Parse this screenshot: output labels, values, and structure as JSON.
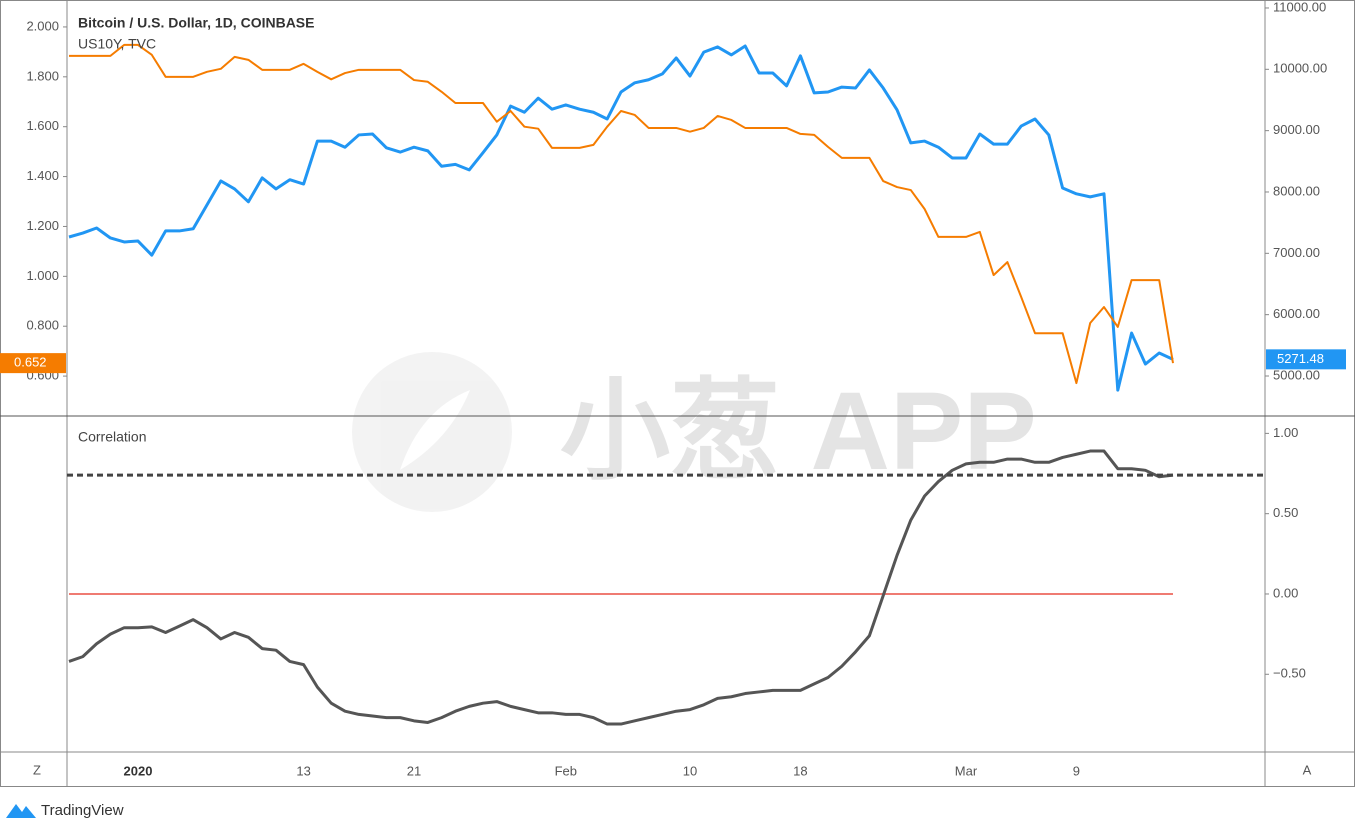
{
  "chart_data": [
    {
      "type": "line",
      "categories": [
        null,
        null,
        null,
        null,
        null,
        "2020",
        null,
        null,
        null,
        null,
        null,
        null,
        null,
        null,
        null,
        null,
        null,
        "13",
        null,
        null,
        null,
        null,
        null,
        null,
        null,
        "21",
        null,
        null,
        null,
        null,
        null,
        null,
        null,
        null,
        null,
        null,
        "Feb",
        null,
        null,
        null,
        null,
        null,
        null,
        null,
        null,
        "10",
        null,
        null,
        null,
        null,
        null,
        null,
        null,
        "18",
        null,
        null,
        null,
        null,
        null,
        null,
        null,
        null,
        null,
        null,
        null,
        "Mar",
        null,
        null,
        null,
        null,
        null,
        null,
        null,
        "9",
        null,
        null,
        null,
        null,
        null,
        null,
        null
      ],
      "ylim": [
        0.444,
        2.108
      ],
      "yticks": [
        {
          "value": 0.6,
          "label": "0.600"
        },
        {
          "value": 0.8,
          "label": "0.800"
        },
        {
          "value": 1.0,
          "label": "1.000"
        },
        {
          "value": 1.2,
          "label": "1.200"
        },
        {
          "value": 1.4,
          "label": "1.400"
        },
        {
          "value": 1.6,
          "label": "1.600"
        },
        {
          "value": 1.8,
          "label": "1.800"
        },
        {
          "value": 2.0,
          "label": "2.000"
        }
      ],
      "y2lim": [
        4364,
        11130
      ],
      "y2ticks": [
        {
          "value": 5000,
          "label": "5000.00"
        },
        {
          "value": 6000,
          "label": "6000.00"
        },
        {
          "value": 7000,
          "label": "7000.00"
        },
        {
          "value": 8000,
          "label": "8000.00"
        },
        {
          "value": 9000,
          "label": "9000.00"
        },
        {
          "value": 10000,
          "label": "10000.00"
        },
        {
          "value": 11000,
          "label": "11000.00"
        }
      ],
      "series": [
        {
          "name": "Bitcoin / U.S. Dollar, 1D, COINBASE",
          "color": "#2196f3",
          "axis": "y2",
          "values": [
            7266,
            7330,
            7413,
            7250,
            7185,
            7200,
            6970,
            7365,
            7365,
            7400,
            7790,
            8180,
            8050,
            7840,
            8230,
            8050,
            8200,
            8130,
            8830,
            8830,
            8730,
            8930,
            8945,
            8720,
            8650,
            8730,
            8670,
            8420,
            8450,
            8360,
            8640,
            8930,
            9400,
            9300,
            9530,
            9350,
            9420,
            9350,
            9300,
            9190,
            9630,
            9780,
            9830,
            9925,
            10185,
            9890,
            10280,
            10365,
            10235,
            10380,
            9940,
            9940,
            9730,
            10220,
            9615,
            9630,
            9710,
            9695,
            9990,
            9695,
            9340,
            8800,
            8830,
            8730,
            8555,
            8555,
            8945,
            8780,
            8780,
            9075,
            9190,
            8930,
            8065,
            7970,
            7920,
            7970,
            4770,
            5700,
            5195,
            5375,
            5271.48
          ]
        },
        {
          "name": "US10Y, TVC",
          "color": "#f57c00",
          "values": [
            1.884,
            1.884,
            1.884,
            1.884,
            1.928,
            1.928,
            1.888,
            1.8,
            1.8,
            1.8,
            1.82,
            1.832,
            1.88,
            1.868,
            1.828,
            1.828,
            1.828,
            1.852,
            1.82,
            1.79,
            1.815,
            1.828,
            1.828,
            1.828,
            1.828,
            1.787,
            1.78,
            1.74,
            1.695,
            1.695,
            1.695,
            1.62,
            1.663,
            1.6,
            1.592,
            1.515,
            1.515,
            1.515,
            1.527,
            1.6,
            1.663,
            1.647,
            1.595,
            1.595,
            1.595,
            1.58,
            1.595,
            1.643,
            1.627,
            1.595,
            1.595,
            1.595,
            1.595,
            1.571,
            1.567,
            1.519,
            1.475,
            1.475,
            1.475,
            1.382,
            1.358,
            1.346,
            1.27,
            1.158,
            1.158,
            1.158,
            1.178,
            1.005,
            1.057,
            0.917,
            0.772,
            0.772,
            0.772,
            0.572,
            0.813,
            0.877,
            0.797,
            0.985,
            0.985,
            0.985,
            0.652
          ]
        }
      ]
    },
    {
      "type": "line",
      "ylim": [
        -0.984,
        1.102
      ],
      "yticks": [
        {
          "value": -0.5,
          "label": "−0.50"
        },
        {
          "value": 0,
          "label": "0.00"
        },
        {
          "value": 0.5,
          "label": "0.50"
        },
        {
          "value": 1,
          "label": "1.00"
        }
      ],
      "reference_line": {
        "value": 0,
        "color": "#ef7b72"
      },
      "series": [
        {
          "name": "Correlation",
          "color": "#555555",
          "values": [
            -0.42,
            -0.39,
            -0.31,
            -0.25,
            -0.21,
            -0.21,
            -0.205,
            -0.24,
            -0.2,
            -0.16,
            -0.21,
            -0.28,
            -0.24,
            -0.27,
            -0.34,
            -0.35,
            -0.42,
            -0.44,
            -0.58,
            -0.68,
            -0.73,
            -0.75,
            -0.76,
            -0.77,
            -0.77,
            -0.79,
            -0.8,
            -0.77,
            -0.73,
            -0.7,
            -0.68,
            -0.67,
            -0.7,
            -0.72,
            -0.74,
            -0.74,
            -0.75,
            -0.75,
            -0.77,
            -0.81,
            -0.81,
            -0.79,
            -0.77,
            -0.75,
            -0.73,
            -0.72,
            -0.69,
            -0.65,
            -0.64,
            -0.62,
            -0.61,
            -0.6,
            -0.6,
            -0.6,
            -0.56,
            -0.52,
            -0.45,
            -0.36,
            -0.26,
            -0.01,
            0.24,
            0.46,
            0.61,
            0.7,
            0.77,
            0.81,
            0.82,
            0.82,
            0.84,
            0.84,
            0.82,
            0.82,
            0.85,
            0.87,
            0.89,
            0.89,
            0.78,
            0.78,
            0.77,
            0.73,
            0.74
          ]
        }
      ]
    }
  ],
  "watermark": "小葱 APP",
  "axis_buttons": [
    "Z",
    "A"
  ],
  "footer": {
    "brand": "TradingView"
  }
}
